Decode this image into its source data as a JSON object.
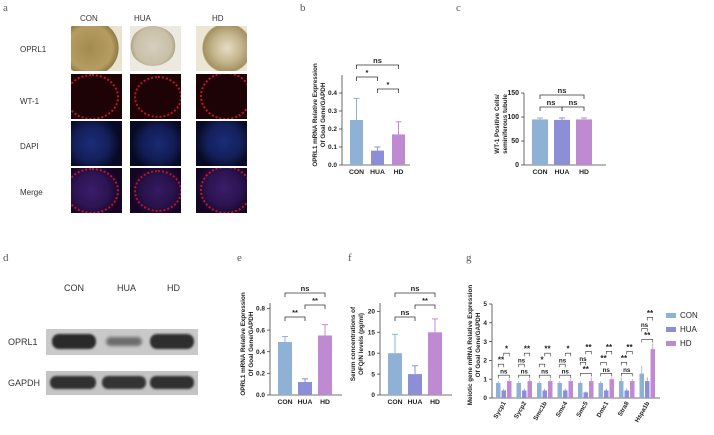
{
  "panels": [
    "a",
    "b",
    "c",
    "d",
    "e",
    "f",
    "g"
  ],
  "panel_a": {
    "columns": [
      "CON",
      "HUA",
      "HD"
    ],
    "rows": [
      "OPRL1",
      "WT-1",
      "DAPI",
      "Merge"
    ],
    "colors": {
      "OPRL1": "#b9a66d",
      "WT-1": "#2a0509",
      "DAPI": "#0b0f2c",
      "Merge": "#220a2a"
    }
  },
  "panel_d": {
    "columns": [
      "CON",
      "HUA",
      "HD"
    ],
    "rows": [
      "OPRL1",
      "GAPDH"
    ],
    "band_intensity": {
      "OPRL1": [
        0.9,
        0.35,
        0.85
      ],
      "GAPDH": [
        0.85,
        0.85,
        0.85
      ]
    }
  },
  "legend": {
    "items": [
      {
        "label": "CON",
        "color": "#8fb1d6"
      },
      {
        "label": "HUA",
        "color": "#8c8fd6"
      },
      {
        "label": "HD",
        "color": "#c08ad3"
      }
    ]
  },
  "chart_data": [
    {
      "id": "b",
      "type": "bar",
      "categories": [
        "CON",
        "HUA",
        "HD"
      ],
      "values": [
        0.25,
        0.08,
        0.17
      ],
      "errors": [
        0.12,
        0.02,
        0.07
      ],
      "ylabel": "OPRL1 mRNA Relative Expression Of Goal Gene/GAPDH",
      "ylim": [
        0,
        0.5
      ],
      "yticks": [
        "0.0",
        "0.1",
        "0.2",
        "0.3",
        "0.4"
      ],
      "colors": [
        "#8fb1d6",
        "#8c8fd6",
        "#c08ad3"
      ],
      "comparisons": [
        {
          "a": 0,
          "b": 2,
          "label": "ns",
          "level": 3
        },
        {
          "a": 0,
          "b": 1,
          "label": "*",
          "level": 2
        },
        {
          "a": 1,
          "b": 2,
          "label": "*",
          "level": 1
        }
      ]
    },
    {
      "id": "c",
      "type": "bar",
      "categories": [
        "CON",
        "HUA",
        "HD"
      ],
      "values": [
        95,
        94,
        95
      ],
      "errors": [
        3,
        4,
        3
      ],
      "ylabel": "WT-1 Positive Cells/ seminiferous tubule",
      "ylim": [
        0,
        150
      ],
      "yticks": [
        "0",
        "50",
        "100",
        "150"
      ],
      "colors": [
        "#8fb1d6",
        "#8c8fd6",
        "#c08ad3"
      ],
      "comparisons": [
        {
          "a": 0,
          "b": 2,
          "label": "ns",
          "level": 2
        },
        {
          "a": 0,
          "b": 1,
          "label": "ns",
          "level": 1
        },
        {
          "a": 1,
          "b": 2,
          "label": "ns",
          "level": 1
        }
      ]
    },
    {
      "id": "e",
      "type": "bar",
      "categories": [
        "CON",
        "HUA",
        "HD"
      ],
      "values": [
        0.49,
        0.12,
        0.55
      ],
      "errors": [
        0.05,
        0.03,
        0.1
      ],
      "ylabel": "OPRL1 mRNA Relative Expression Of Goal Gene/GAPDH",
      "ylim": [
        0,
        0.85
      ],
      "yticks": [
        "0.0",
        "0.2",
        "0.4",
        "0.6",
        "0.8"
      ],
      "colors": [
        "#8fb1d6",
        "#8c8fd6",
        "#c08ad3"
      ],
      "comparisons": [
        {
          "a": 0,
          "b": 2,
          "label": "ns",
          "level": 3
        },
        {
          "a": 0,
          "b": 1,
          "label": "**",
          "level": 1
        },
        {
          "a": 1,
          "b": 2,
          "label": "**",
          "level": 2
        }
      ]
    },
    {
      "id": "f",
      "type": "bar",
      "categories": [
        "CON",
        "HUA",
        "HD"
      ],
      "values": [
        10,
        5,
        15
      ],
      "errors": [
        4.5,
        2,
        3.2
      ],
      "ylabel": "Serum concentrations of OFQ/N levels (pg/ml)",
      "ylim": [
        0,
        22
      ],
      "yticks": [
        "0",
        "5",
        "10",
        "15",
        "20"
      ],
      "colors": [
        "#8fb1d6",
        "#8c8fd6",
        "#c08ad3"
      ],
      "comparisons": [
        {
          "a": 0,
          "b": 2,
          "label": "ns",
          "level": 3
        },
        {
          "a": 0,
          "b": 1,
          "label": "ns",
          "level": 1
        },
        {
          "a": 1,
          "b": 2,
          "label": "**",
          "level": 2
        }
      ]
    },
    {
      "id": "g",
      "type": "bar",
      "categories": [
        "Sycp1",
        "Sycp2",
        "Smc1b",
        "Smc4",
        "Smc5",
        "Dmc1",
        "Stra8",
        "Hspa1b"
      ],
      "series": [
        {
          "name": "CON",
          "values": [
            0.8,
            0.8,
            0.8,
            0.8,
            0.8,
            0.8,
            0.9,
            1.3
          ],
          "errors": [
            0.1,
            0.1,
            0.1,
            0.1,
            0.1,
            0.1,
            0.2,
            0.4
          ]
        },
        {
          "name": "HUA",
          "values": [
            0.4,
            0.4,
            0.4,
            0.4,
            0.3,
            0.4,
            0.4,
            0.9
          ],
          "errors": [
            0.1,
            0.1,
            0.1,
            0.1,
            0.05,
            0.1,
            0.1,
            0.2
          ]
        },
        {
          "name": "HD",
          "values": [
            0.9,
            0.9,
            0.9,
            0.9,
            0.9,
            1.0,
            0.9,
            2.6
          ],
          "errors": [
            0.1,
            0.1,
            0.1,
            0.1,
            0.2,
            0.1,
            0.1,
            0.3
          ]
        }
      ],
      "ylabel": "Meiotic gene mRNA Relative Expression Of Goal Gene/GAPDH",
      "ylim": [
        0,
        5
      ],
      "yticks": [
        "0",
        "1",
        "2",
        "3",
        "4",
        "5"
      ],
      "colors": [
        "#8fb1d6",
        "#8c8fd6",
        "#c08ad3"
      ],
      "sig": [
        [
          "ns",
          "**",
          "*"
        ],
        [
          "ns",
          "ns",
          "**"
        ],
        [
          "ns",
          "*",
          "**"
        ],
        [
          "ns",
          "ns",
          "*"
        ],
        [
          "**",
          "ns",
          "**"
        ],
        [
          "ns",
          "**",
          "**"
        ],
        [
          "ns",
          "**",
          "**"
        ],
        [
          "**",
          "ns",
          "**"
        ]
      ]
    }
  ]
}
